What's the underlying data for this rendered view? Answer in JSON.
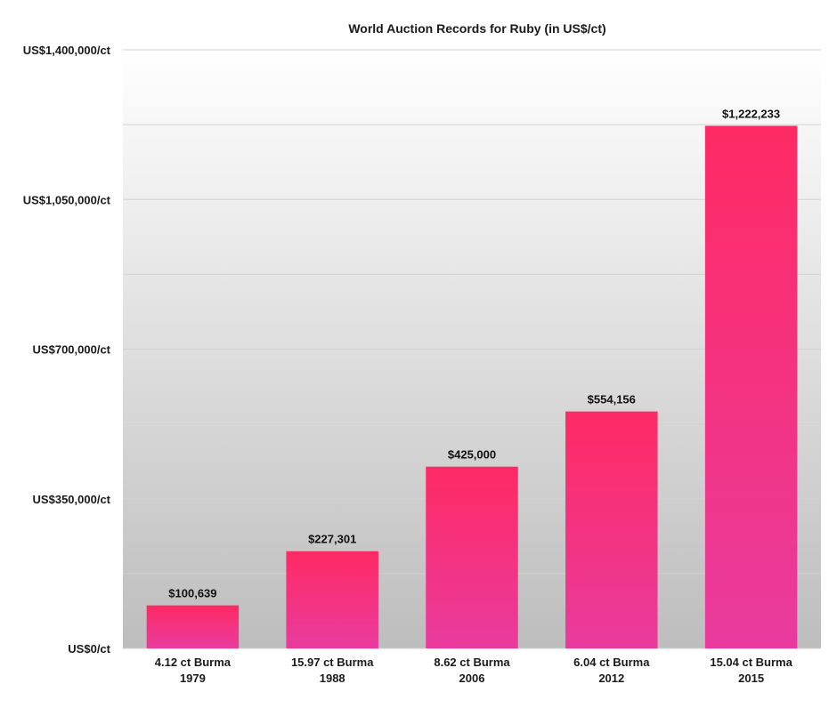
{
  "chart_data": {
    "type": "bar",
    "title": "World Auction Records for Ruby (in US$/ct)",
    "xlabel": "",
    "ylabel": "",
    "categories": [
      [
        "4.12 ct Burma",
        "1979"
      ],
      [
        "15.97 ct Burma",
        "1988"
      ],
      [
        "8.62 ct Burma",
        "2006"
      ],
      [
        "6.04 ct Burma",
        "2012"
      ],
      [
        "15.04 ct Burma",
        "2015"
      ]
    ],
    "values": [
      100639,
      227301,
      425000,
      554156,
      1222233
    ],
    "data_labels": [
      "$100,639",
      "$227,301",
      "$425,000",
      "$554,156",
      "$1,222,233"
    ],
    "ylim": [
      0,
      1400000
    ],
    "yticks": [
      0,
      350000,
      700000,
      1050000,
      1400000
    ],
    "ytick_labels": [
      "US$0/ct",
      "US$350,000/ct",
      "US$700,000/ct",
      "US$1,050,000/ct",
      "US$1,400,000/ct"
    ],
    "grid": true,
    "legend": "none",
    "colors": {
      "bar_top": "#ff2a64",
      "bar_bottom": "#e93b9e",
      "plot_bg_top": "#ffffff",
      "plot_bg_bottom": "#bdbdbd",
      "gridline": "#d2d2d2"
    }
  }
}
